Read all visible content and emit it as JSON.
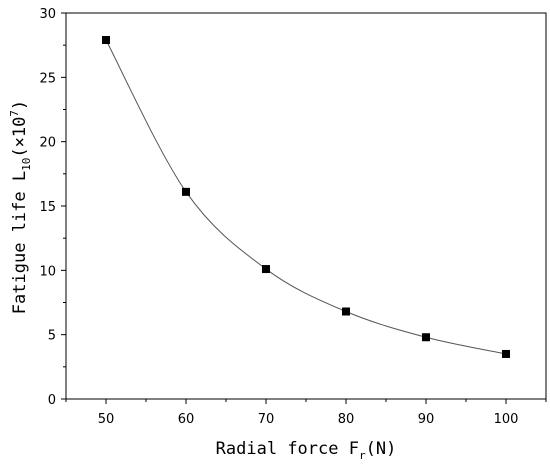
{
  "chart_data": {
    "type": "scatter",
    "xlabel": "Radial force F",
    "xlabel_sub": "r",
    "xlabel_tail": "(N)",
    "ylabel": "Fatigue life L",
    "ylabel_sub": "10",
    "ylabel_mid": "(×10",
    "ylabel_sup": "7",
    "ylabel_tail": ")",
    "x": [
      50,
      60,
      70,
      80,
      90,
      100
    ],
    "y": [
      27.9,
      16.1,
      10.1,
      6.8,
      4.8,
      3.5
    ],
    "xlim": [
      45,
      105
    ],
    "ylim": [
      0,
      30
    ],
    "x_ticks": [
      50,
      60,
      70,
      80,
      90,
      100
    ],
    "y_ticks": [
      0,
      5,
      10,
      15,
      20,
      25,
      30
    ],
    "fit_curve": true,
    "grid": false,
    "marker": "square",
    "marker_color": "#000000",
    "line_color": "#555555"
  }
}
